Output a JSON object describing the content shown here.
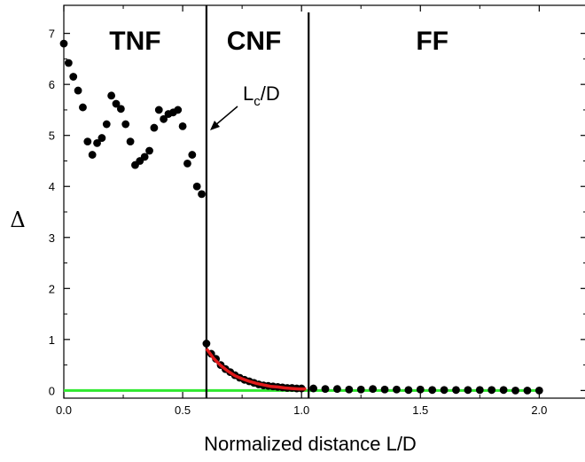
{
  "chart_data": {
    "type": "scatter",
    "xlabel": "Normalized distance L/D",
    "ylabel": "Δ",
    "xlim": [
      0.0,
      2.2
    ],
    "ylim": [
      -0.15,
      7.55
    ],
    "x_ticks": [
      0.0,
      0.5,
      1.0,
      1.5,
      2.0
    ],
    "x_tick_labels": [
      "0.0",
      "0.5",
      "1.0",
      "1.5",
      "2.0"
    ],
    "y_ticks": [
      0,
      1,
      2,
      3,
      4,
      5,
      6,
      7
    ],
    "y_tick_labels": [
      "0",
      "1",
      "2",
      "3",
      "4",
      "5",
      "6",
      "7"
    ],
    "regions": [
      {
        "label": "TNF",
        "x": 0.3
      },
      {
        "label": "CNF",
        "x": 0.8
      },
      {
        "label": "FF",
        "x": 1.55
      }
    ],
    "boundaries": [
      0.6,
      1.03
    ],
    "annotation": {
      "text": "L",
      "sub": "c",
      "suffix": "/D"
    },
    "scatter": {
      "x": [
        0.0,
        0.02,
        0.04,
        0.06,
        0.08,
        0.1,
        0.12,
        0.14,
        0.16,
        0.18,
        0.2,
        0.22,
        0.24,
        0.26,
        0.28,
        0.3,
        0.32,
        0.34,
        0.36,
        0.38,
        0.4,
        0.42,
        0.44,
        0.46,
        0.48,
        0.5,
        0.52,
        0.54,
        0.56,
        0.58,
        0.6,
        0.62,
        0.64,
        0.66,
        0.68,
        0.7,
        0.72,
        0.74,
        0.76,
        0.78,
        0.8,
        0.82,
        0.84,
        0.86,
        0.88,
        0.9,
        0.92,
        0.94,
        0.96,
        0.98,
        1.0,
        1.05,
        1.1,
        1.15,
        1.2,
        1.25,
        1.3,
        1.35,
        1.4,
        1.45,
        1.5,
        1.55,
        1.6,
        1.65,
        1.7,
        1.75,
        1.8,
        1.85,
        1.9,
        1.95,
        2.0
      ],
      "y": [
        6.8,
        6.42,
        6.15,
        5.88,
        5.55,
        4.88,
        4.62,
        4.85,
        4.95,
        5.22,
        5.78,
        5.62,
        5.52,
        5.22,
        4.88,
        4.42,
        4.5,
        4.58,
        4.7,
        5.15,
        5.5,
        5.32,
        5.42,
        5.45,
        5.5,
        5.18,
        4.45,
        4.62,
        4.0,
        3.85,
        0.92,
        0.72,
        0.62,
        0.5,
        0.42,
        0.36,
        0.3,
        0.25,
        0.21,
        0.18,
        0.15,
        0.12,
        0.1,
        0.09,
        0.08,
        0.07,
        0.06,
        0.05,
        0.05,
        0.04,
        0.04,
        0.04,
        0.03,
        0.03,
        0.02,
        0.02,
        0.03,
        0.02,
        0.02,
        0.01,
        0.02,
        0.01,
        0.01,
        0.01,
        0.01,
        0.01,
        0.01,
        0.01,
        0.0,
        0.0,
        0.0
      ],
      "color": "#000000"
    },
    "fit_line": {
      "x": [
        0.6,
        0.63,
        0.66,
        0.69,
        0.72,
        0.75,
        0.78,
        0.81,
        0.84,
        0.87,
        0.9,
        0.93,
        0.96,
        0.99,
        1.02
      ],
      "y": [
        0.82,
        0.63,
        0.49,
        0.38,
        0.29,
        0.23,
        0.18,
        0.14,
        0.11,
        0.08,
        0.07,
        0.05,
        0.04,
        0.03,
        0.03
      ],
      "color": "#e0191a"
    },
    "baseline": {
      "y": 0.0,
      "color": "#2ee82e"
    },
    "grid": false
  }
}
